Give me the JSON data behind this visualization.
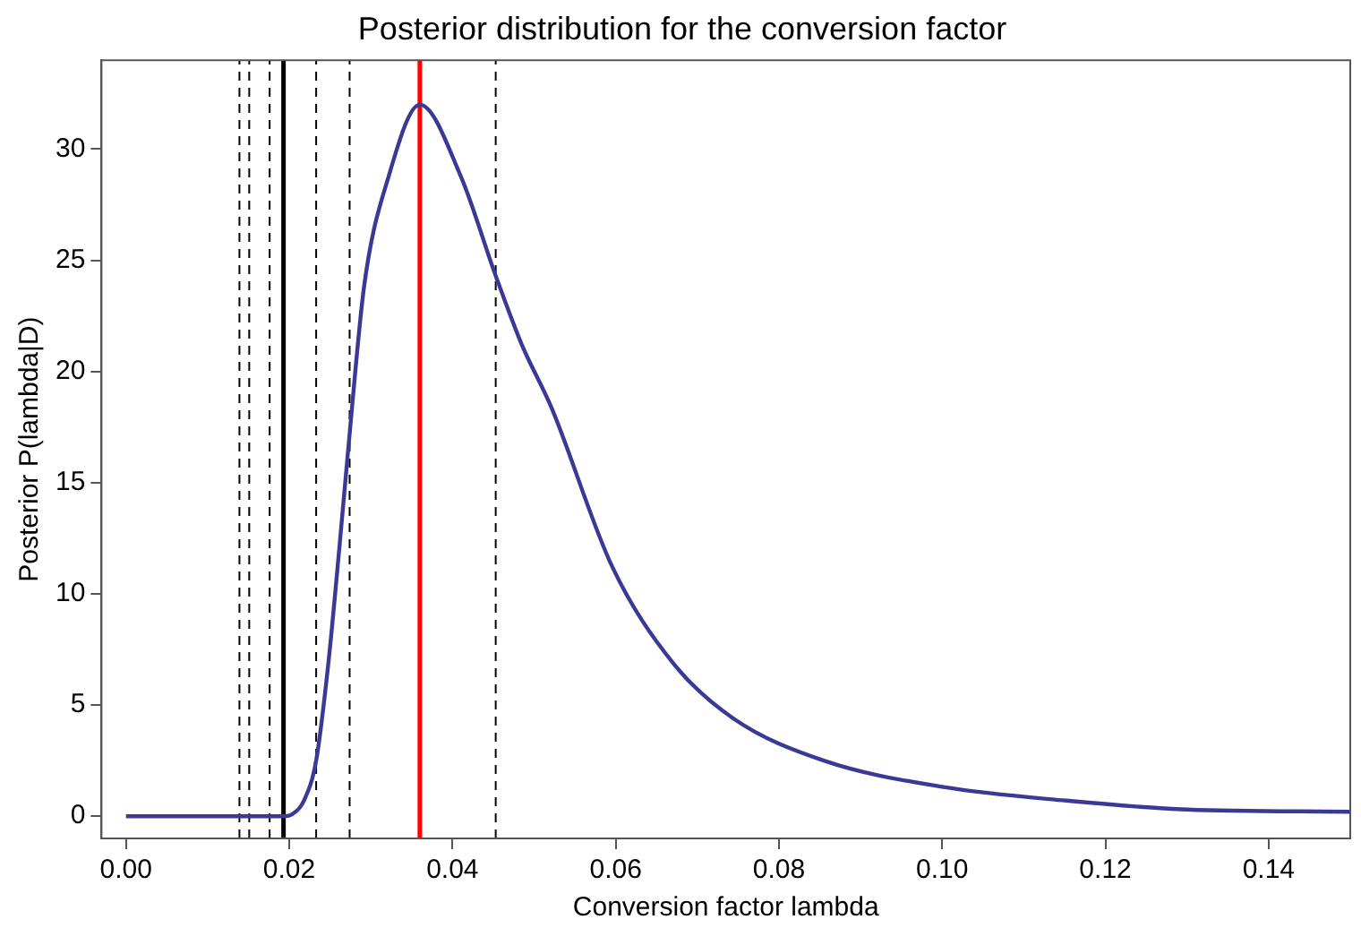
{
  "chart_data": {
    "type": "line",
    "title": "Posterior distribution for the conversion factor",
    "xlabel": "Conversion factor lambda",
    "ylabel": "Posterior P(lambda|D)",
    "xlim": [
      -0.003,
      0.15
    ],
    "ylim": [
      -1,
      34
    ],
    "xticks": [
      {
        "value": 0,
        "label": "0.00"
      },
      {
        "value": 0.02,
        "label": "0.02"
      },
      {
        "value": 0.04,
        "label": "0.04"
      },
      {
        "value": 0.06,
        "label": "0.06"
      },
      {
        "value": 0.08,
        "label": "0.08"
      },
      {
        "value": 0.1,
        "label": "0.10"
      },
      {
        "value": 0.12,
        "label": "0.12"
      },
      {
        "value": 0.14,
        "label": "0.14"
      }
    ],
    "yticks": [
      0,
      5,
      10,
      15,
      20,
      25,
      30
    ],
    "grid": false,
    "legend": false,
    "marker": "none",
    "line_style": "solid",
    "series": [
      {
        "color": "#3a3a96",
        "x": [
          0,
          0.01,
          0.0193,
          0.0204,
          0.0218,
          0.0233,
          0.0248,
          0.0262,
          0.0274,
          0.0292,
          0.0322,
          0.036,
          0.041,
          0.0453,
          0.0485,
          0.0521,
          0.0596,
          0.067,
          0.0744,
          0.0855,
          0.1004,
          0.1152,
          0.13,
          0.15
        ],
        "values": [
          0,
          0,
          0,
          0.1,
          0.7,
          2.5,
          6.9,
          12.3,
          17.2,
          23.9,
          28.8,
          32.0,
          28.8,
          24.3,
          21.2,
          18.4,
          11.2,
          6.9,
          4.4,
          2.5,
          1.3,
          0.7,
          0.3,
          0.2
        ]
      }
    ],
    "ref_lines": [
      {
        "axis": "x",
        "value": 0.0139,
        "color": "#000000",
        "line_style": "dashed"
      },
      {
        "axis": "x",
        "value": 0.0151,
        "color": "#000000",
        "line_style": "dashed"
      },
      {
        "axis": "x",
        "value": 0.0176,
        "color": "#000000",
        "line_style": "dashed"
      },
      {
        "axis": "x",
        "value": 0.0193,
        "color": "#000000",
        "line_style": "solid"
      },
      {
        "axis": "x",
        "value": 0.0233,
        "color": "#000000",
        "line_style": "dashed"
      },
      {
        "axis": "x",
        "value": 0.0274,
        "color": "#000000",
        "line_style": "dashed"
      },
      {
        "axis": "x",
        "value": 0.036,
        "color": "#ff0000",
        "line_style": "solid"
      },
      {
        "axis": "x",
        "value": 0.0453,
        "color": "#000000",
        "line_style": "dashed"
      }
    ]
  }
}
